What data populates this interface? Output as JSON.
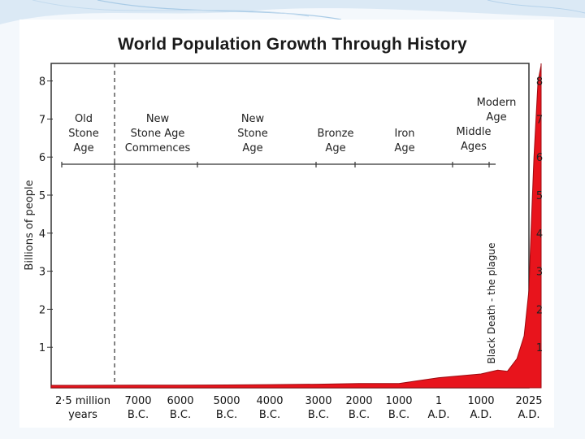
{
  "chart_data": {
    "type": "area",
    "title": "World Population Growth Through History",
    "ylabel": "Billions of people",
    "ylim": [
      0,
      8.5
    ],
    "yticks": [
      "1",
      "2",
      "3",
      "4",
      "5",
      "6",
      "7",
      "8"
    ],
    "x_categories": [
      [
        "2·5 million",
        "years"
      ],
      [
        "7000",
        "B.C."
      ],
      [
        "6000",
        "B.C."
      ],
      [
        "5000",
        "B.C."
      ],
      [
        "4000",
        "B.C."
      ],
      [
        "3000",
        "B.C."
      ],
      [
        "2000",
        "B.C."
      ],
      [
        "1000",
        "B.C."
      ],
      [
        "1",
        "A.D."
      ],
      [
        "1000",
        "A.D."
      ],
      [
        "2025",
        "A.D."
      ]
    ],
    "eras": [
      {
        "lines": [
          "Old",
          "Stone",
          "Age"
        ]
      },
      {
        "lines": [
          "New",
          "Stone Age",
          "Commences"
        ]
      },
      {
        "lines": [
          "New",
          "Stone",
          "Age"
        ]
      },
      {
        "lines": [
          "Bronze",
          "Age"
        ]
      },
      {
        "lines": [
          "Iron",
          "Age"
        ]
      },
      {
        "lines": [
          "Middle",
          "Ages"
        ]
      },
      {
        "lines": [
          "Modern",
          "Age"
        ]
      }
    ],
    "annotation": "Black Death - the plague",
    "series": [
      {
        "x": [
          0,
          1,
          2,
          3,
          4,
          5,
          6,
          7,
          8,
          9,
          9.35,
          9.55,
          9.75,
          9.9,
          10,
          10.1,
          10.25,
          10.35,
          10.45,
          10.6
        ],
        "y": [
          0.0,
          0.005,
          0.005,
          0.01,
          0.02,
          0.03,
          0.05,
          0.05,
          0.2,
          0.3,
          0.4,
          0.37,
          0.7,
          1.3,
          2.5,
          4.0,
          6.0,
          7.0,
          8.0,
          8.4
        ]
      }
    ],
    "colors": {
      "fill": "#e8141c",
      "frame": "#333333"
    }
  }
}
